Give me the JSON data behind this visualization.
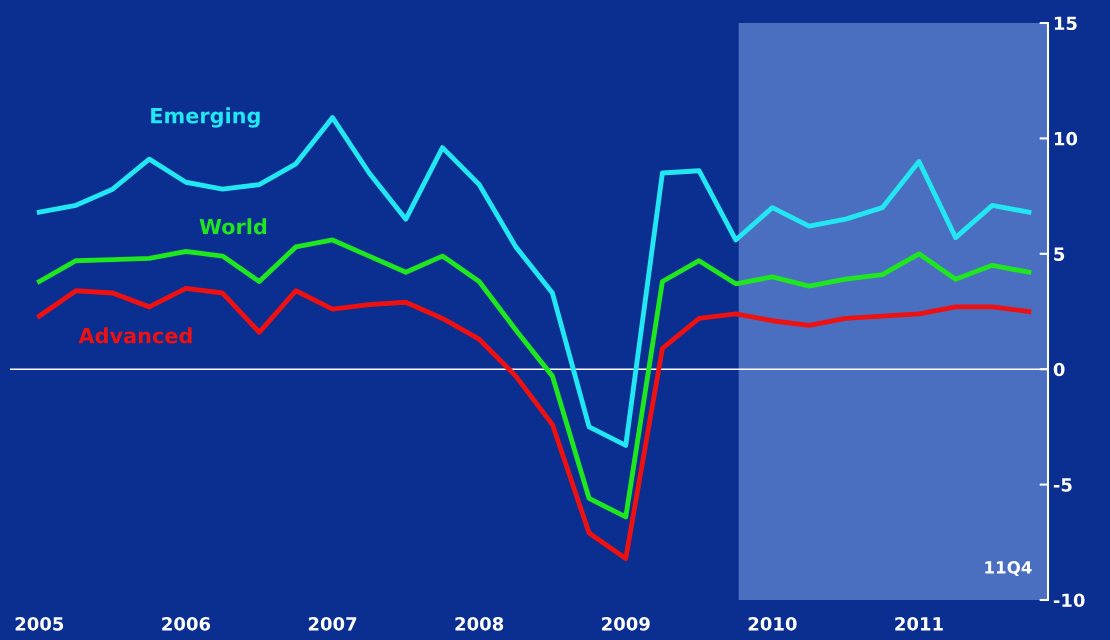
{
  "chart_data": {
    "type": "line",
    "x": [
      2005.0,
      2005.25,
      2005.5,
      2005.75,
      2006.0,
      2006.25,
      2006.5,
      2006.75,
      2007.0,
      2007.25,
      2007.5,
      2007.75,
      2008.0,
      2008.25,
      2008.5,
      2008.75,
      2009.0,
      2009.25,
      2009.5,
      2009.75,
      2010.0,
      2010.25,
      2010.5,
      2010.75,
      2011.0,
      2011.25,
      2011.5,
      2011.75
    ],
    "series": [
      {
        "name": "Emerging",
        "color": "#22e6f2",
        "values": [
          6.8,
          7.1,
          7.8,
          9.1,
          8.1,
          7.8,
          8.0,
          8.9,
          10.9,
          8.5,
          6.5,
          9.6,
          8.0,
          5.3,
          3.3,
          -2.5,
          -3.3,
          8.5,
          8.6,
          5.6,
          7.0,
          6.2,
          6.5,
          7.0,
          9.0,
          5.7,
          7.1,
          6.8
        ]
      },
      {
        "name": "World",
        "color": "#1fe61f",
        "values": [
          3.8,
          4.7,
          4.75,
          4.8,
          5.1,
          4.9,
          3.8,
          5.3,
          5.6,
          4.9,
          4.2,
          4.9,
          3.8,
          1.7,
          -0.3,
          -5.6,
          -6.4,
          3.8,
          4.7,
          3.7,
          4.0,
          3.6,
          3.9,
          4.1,
          5.0,
          3.9,
          4.5,
          4.2
        ]
      },
      {
        "name": "Advanced",
        "color": "#ee1111",
        "values": [
          2.3,
          3.4,
          3.3,
          2.7,
          3.5,
          3.3,
          1.6,
          3.4,
          2.6,
          2.8,
          2.9,
          2.2,
          1.3,
          -0.3,
          -2.4,
          -7.1,
          -8.2,
          0.9,
          2.2,
          2.4,
          2.1,
          1.9,
          2.2,
          2.3,
          2.4,
          2.7,
          2.7,
          2.5
        ]
      }
    ],
    "xlim": [
      2004.8,
      2011.88
    ],
    "xticks": [
      2005,
      2006,
      2007,
      2008,
      2009,
      2010,
      2011
    ],
    "ylim": [
      -10,
      15
    ],
    "yticks": [
      -10,
      -5,
      0,
      5,
      10,
      15
    ],
    "ref_lines": [
      {
        "axis": "y",
        "value": 0,
        "color": "#ffffff"
      }
    ],
    "bands": [
      {
        "axis": "x",
        "from": 2009.77,
        "to": 2011.88,
        "color": "#4a6fc0"
      }
    ],
    "annotations": [
      "11Q4"
    ],
    "grid": false,
    "legend": false,
    "marker": "none",
    "line_style": "solid"
  }
}
